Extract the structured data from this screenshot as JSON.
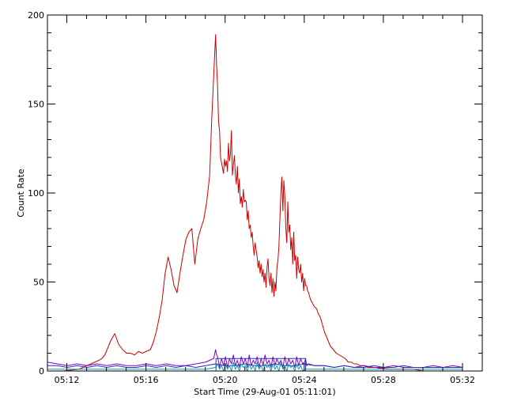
{
  "chart_data": {
    "type": "line",
    "title": "",
    "xlabel": "Start Time (29-Aug-01 05:11:01)",
    "ylabel": "Count Rate",
    "x_unit": "minutes after 05:11:01",
    "xlim": [
      0,
      21.98
    ],
    "ylim": [
      0,
      200
    ],
    "x_ticks": [
      {
        "value": 0.98,
        "label": "05:12"
      },
      {
        "value": 4.98,
        "label": "05:16"
      },
      {
        "value": 8.98,
        "label": "05:20"
      },
      {
        "value": 12.98,
        "label": "05:24"
      },
      {
        "value": 16.98,
        "label": "05:28"
      },
      {
        "value": 20.98,
        "label": "05:32"
      }
    ],
    "y_ticks": [
      {
        "value": 0,
        "label": "0"
      },
      {
        "value": 50,
        "label": "50"
      },
      {
        "value": 100,
        "label": "100"
      },
      {
        "value": 150,
        "label": "150"
      },
      {
        "value": 200,
        "label": "200"
      }
    ],
    "grid": false,
    "legend": "none",
    "series": [
      {
        "color": "#cc0000",
        "x": [
          0,
          0.4,
          0.8,
          1.2,
          1.6,
          2.0,
          2.2,
          2.4,
          2.6,
          2.75,
          2.9,
          3.05,
          3.2,
          3.4,
          3.6,
          3.8,
          4.0,
          4.2,
          4.4,
          4.6,
          4.8,
          5.0,
          5.2,
          5.35,
          5.5,
          5.65,
          5.8,
          5.95,
          6.1,
          6.25,
          6.4,
          6.55,
          6.7,
          6.85,
          7.0,
          7.15,
          7.3,
          7.45,
          7.6,
          7.75,
          7.9,
          8.05,
          8.2,
          8.3,
          8.4,
          8.5,
          8.55,
          8.6,
          8.65,
          8.7,
          8.75,
          8.8,
          8.85,
          8.9,
          8.95,
          9.0,
          9.05,
          9.1,
          9.15,
          9.2,
          9.25,
          9.3,
          9.35,
          9.4,
          9.45,
          9.5,
          9.55,
          9.6,
          9.65,
          9.7,
          9.75,
          9.8,
          9.85,
          9.9,
          9.95,
          10.0,
          10.05,
          10.1,
          10.15,
          10.2,
          10.25,
          10.3,
          10.35,
          10.4,
          10.45,
          10.5,
          10.55,
          10.6,
          10.65,
          10.7,
          10.75,
          10.8,
          10.85,
          10.9,
          10.95,
          11.0,
          11.05,
          11.1,
          11.15,
          11.2,
          11.25,
          11.3,
          11.35,
          11.4,
          11.45,
          11.5,
          11.55,
          11.6,
          11.65,
          11.7,
          11.75,
          11.8,
          11.85,
          11.9,
          11.95,
          12.0,
          12.05,
          12.1,
          12.15,
          12.2,
          12.25,
          12.3,
          12.35,
          12.4,
          12.45,
          12.5,
          12.55,
          12.6,
          12.65,
          12.7,
          12.75,
          12.8,
          12.85,
          12.9,
          12.95,
          13.0,
          13.05,
          13.1,
          13.15,
          13.2,
          13.25,
          13.3,
          13.4,
          13.5,
          13.6,
          13.7,
          13.8,
          13.9,
          14.0,
          14.15,
          14.3,
          14.45,
          14.6,
          14.75,
          14.9,
          15.05,
          15.2,
          15.35,
          15.5,
          15.65,
          15.8,
          16.0,
          16.2,
          16.4,
          16.6,
          16.8,
          17.0,
          17.3,
          17.6,
          18.0,
          18.5,
          19.0,
          19.5,
          20.0,
          20.5,
          21.0
        ],
        "y": [
          0,
          0,
          0,
          0.5,
          1,
          3,
          4,
          5,
          6,
          7,
          9,
          13,
          17,
          21,
          15,
          12,
          10,
          10,
          9,
          11,
          10,
          11,
          12,
          16,
          22,
          30,
          40,
          55,
          64,
          57,
          48,
          44,
          55,
          65,
          74,
          78,
          80,
          60,
          74,
          80,
          85,
          95,
          110,
          140,
          165,
          189,
          172,
          160,
          140,
          135,
          120,
          117,
          114,
          111,
          119,
          115,
          118,
          112,
          128,
          118,
          122,
          135,
          110,
          116,
          121,
          110,
          105,
          115,
          100,
          108,
          94,
          98,
          92,
          102,
          95,
          96,
          95,
          85,
          90,
          80,
          82,
          75,
          78,
          70,
          65,
          72,
          68,
          64,
          58,
          62,
          55,
          60,
          53,
          57,
          50,
          55,
          47,
          58,
          63,
          52,
          48,
          55,
          44,
          52,
          42,
          50,
          45,
          58,
          62,
          70,
          85,
          100,
          109,
          90,
          107,
          98,
          80,
          72,
          95,
          78,
          82,
          68,
          75,
          60,
          78,
          62,
          65,
          52,
          64,
          57,
          55,
          60,
          50,
          55,
          45,
          52,
          48,
          48,
          45,
          44,
          42,
          40,
          38,
          36,
          35,
          32,
          30,
          26,
          22,
          18,
          14,
          12,
          10,
          9,
          8,
          7,
          5,
          5,
          4,
          4,
          3,
          3,
          2,
          2,
          2,
          1.5,
          1.5,
          1,
          1,
          1,
          1,
          0,
          0,
          0,
          0,
          0
        ]
      },
      {
        "color": "#7b00cc",
        "x": [
          0,
          0.5,
          1,
          1.5,
          2,
          2.5,
          3,
          3.5,
          4,
          4.5,
          5,
          5.5,
          6,
          6.5,
          7,
          7.5,
          8,
          8.4,
          8.5,
          8.55,
          8.6,
          8.7,
          8.8,
          8.9,
          9.0,
          9.1,
          9.2,
          9.3,
          9.4,
          9.5,
          9.6,
          9.7,
          9.8,
          9.9,
          10.0,
          10.1,
          10.2,
          10.3,
          10.4,
          10.5,
          10.6,
          10.7,
          10.8,
          10.9,
          11.0,
          11.1,
          11.2,
          11.3,
          11.4,
          11.5,
          11.6,
          11.7,
          11.8,
          11.9,
          12.0,
          12.1,
          12.2,
          12.3,
          12.4,
          12.5,
          12.6,
          12.7,
          12.8,
          12.9,
          13.0,
          13.05,
          13.1,
          13.2,
          13.5,
          14,
          14.5,
          15,
          15.5,
          16,
          16.5,
          17,
          17.5,
          18,
          18.5,
          19,
          19.5,
          20,
          20.5,
          21
        ],
        "y": [
          5,
          4,
          3,
          4,
          3,
          4,
          3,
          4,
          3,
          3,
          4,
          3,
          4,
          3,
          3,
          4,
          5,
          7,
          12,
          9,
          8,
          2,
          7,
          3,
          8,
          2,
          7,
          4,
          9,
          3,
          6,
          2,
          8,
          4,
          7,
          2,
          9,
          3,
          6,
          4,
          8,
          2,
          7,
          3,
          9,
          4,
          6,
          2,
          8,
          3,
          7,
          4,
          6,
          2,
          8,
          3,
          7,
          4,
          6,
          2,
          8,
          3,
          7,
          4,
          5,
          7,
          3,
          4,
          3,
          3,
          2,
          3,
          2,
          3,
          2,
          2,
          3,
          2,
          2,
          2,
          3,
          2,
          3,
          2
        ]
      },
      {
        "color": "#2b2bbb",
        "x": [
          0,
          0.5,
          1,
          1.5,
          2,
          2.5,
          3,
          3.5,
          4,
          4.5,
          5,
          5.5,
          6,
          6.5,
          7,
          7.5,
          8,
          8.5,
          9,
          9.5,
          10,
          10.5,
          11,
          11.5,
          12,
          12.5,
          13,
          13.5,
          14,
          14.5,
          15,
          15.5,
          16,
          16.5,
          17,
          17.5,
          18,
          18.5,
          19,
          19.5,
          20,
          20.5,
          21
        ],
        "y": [
          3,
          3,
          2,
          3,
          2,
          3,
          2,
          3,
          2,
          2,
          3,
          2,
          3,
          2,
          3,
          2,
          3,
          4,
          3,
          3,
          4,
          3,
          3,
          4,
          3,
          3,
          4,
          3,
          3,
          2,
          3,
          2,
          2,
          3,
          2,
          2,
          3,
          2,
          2,
          2,
          2,
          2,
          2
        ]
      },
      {
        "color": "#00a0a0",
        "x": [
          0,
          1,
          2,
          3,
          4,
          5,
          6,
          7,
          8,
          8.5,
          8.6,
          8.7,
          8.8,
          8.9,
          9.0,
          9.1,
          9.2,
          9.3,
          9.4,
          9.5,
          9.6,
          9.7,
          9.8,
          9.9,
          10.0,
          10.1,
          10.2,
          10.3,
          10.4,
          10.5,
          10.6,
          10.7,
          10.8,
          10.9,
          11.0,
          11.1,
          11.2,
          11.3,
          11.4,
          11.5,
          11.6,
          11.7,
          11.8,
          11.9,
          12.0,
          12.1,
          12.2,
          12.3,
          12.4,
          12.5,
          12.6,
          12.7,
          12.8,
          12.9,
          13.0,
          13.5,
          14,
          15,
          16,
          17,
          18,
          19,
          20,
          21
        ],
        "y": [
          1,
          1,
          1,
          1,
          1,
          1,
          1,
          1,
          1,
          2,
          4,
          1,
          3,
          0,
          4,
          1,
          3,
          0,
          5,
          1,
          3,
          0,
          4,
          2,
          3,
          0,
          4,
          1,
          3,
          0,
          5,
          1,
          3,
          0,
          4,
          2,
          3,
          0,
          4,
          1,
          3,
          0,
          5,
          1,
          3,
          0,
          4,
          2,
          3,
          0,
          4,
          1,
          3,
          0,
          1,
          1,
          1,
          1,
          1,
          1,
          1,
          1,
          1,
          1
        ]
      },
      {
        "color": "#2b2bbb",
        "x": [
          8.52,
          8.52,
          13.05,
          13.05
        ],
        "y": [
          0,
          7,
          7,
          0
        ]
      }
    ]
  }
}
